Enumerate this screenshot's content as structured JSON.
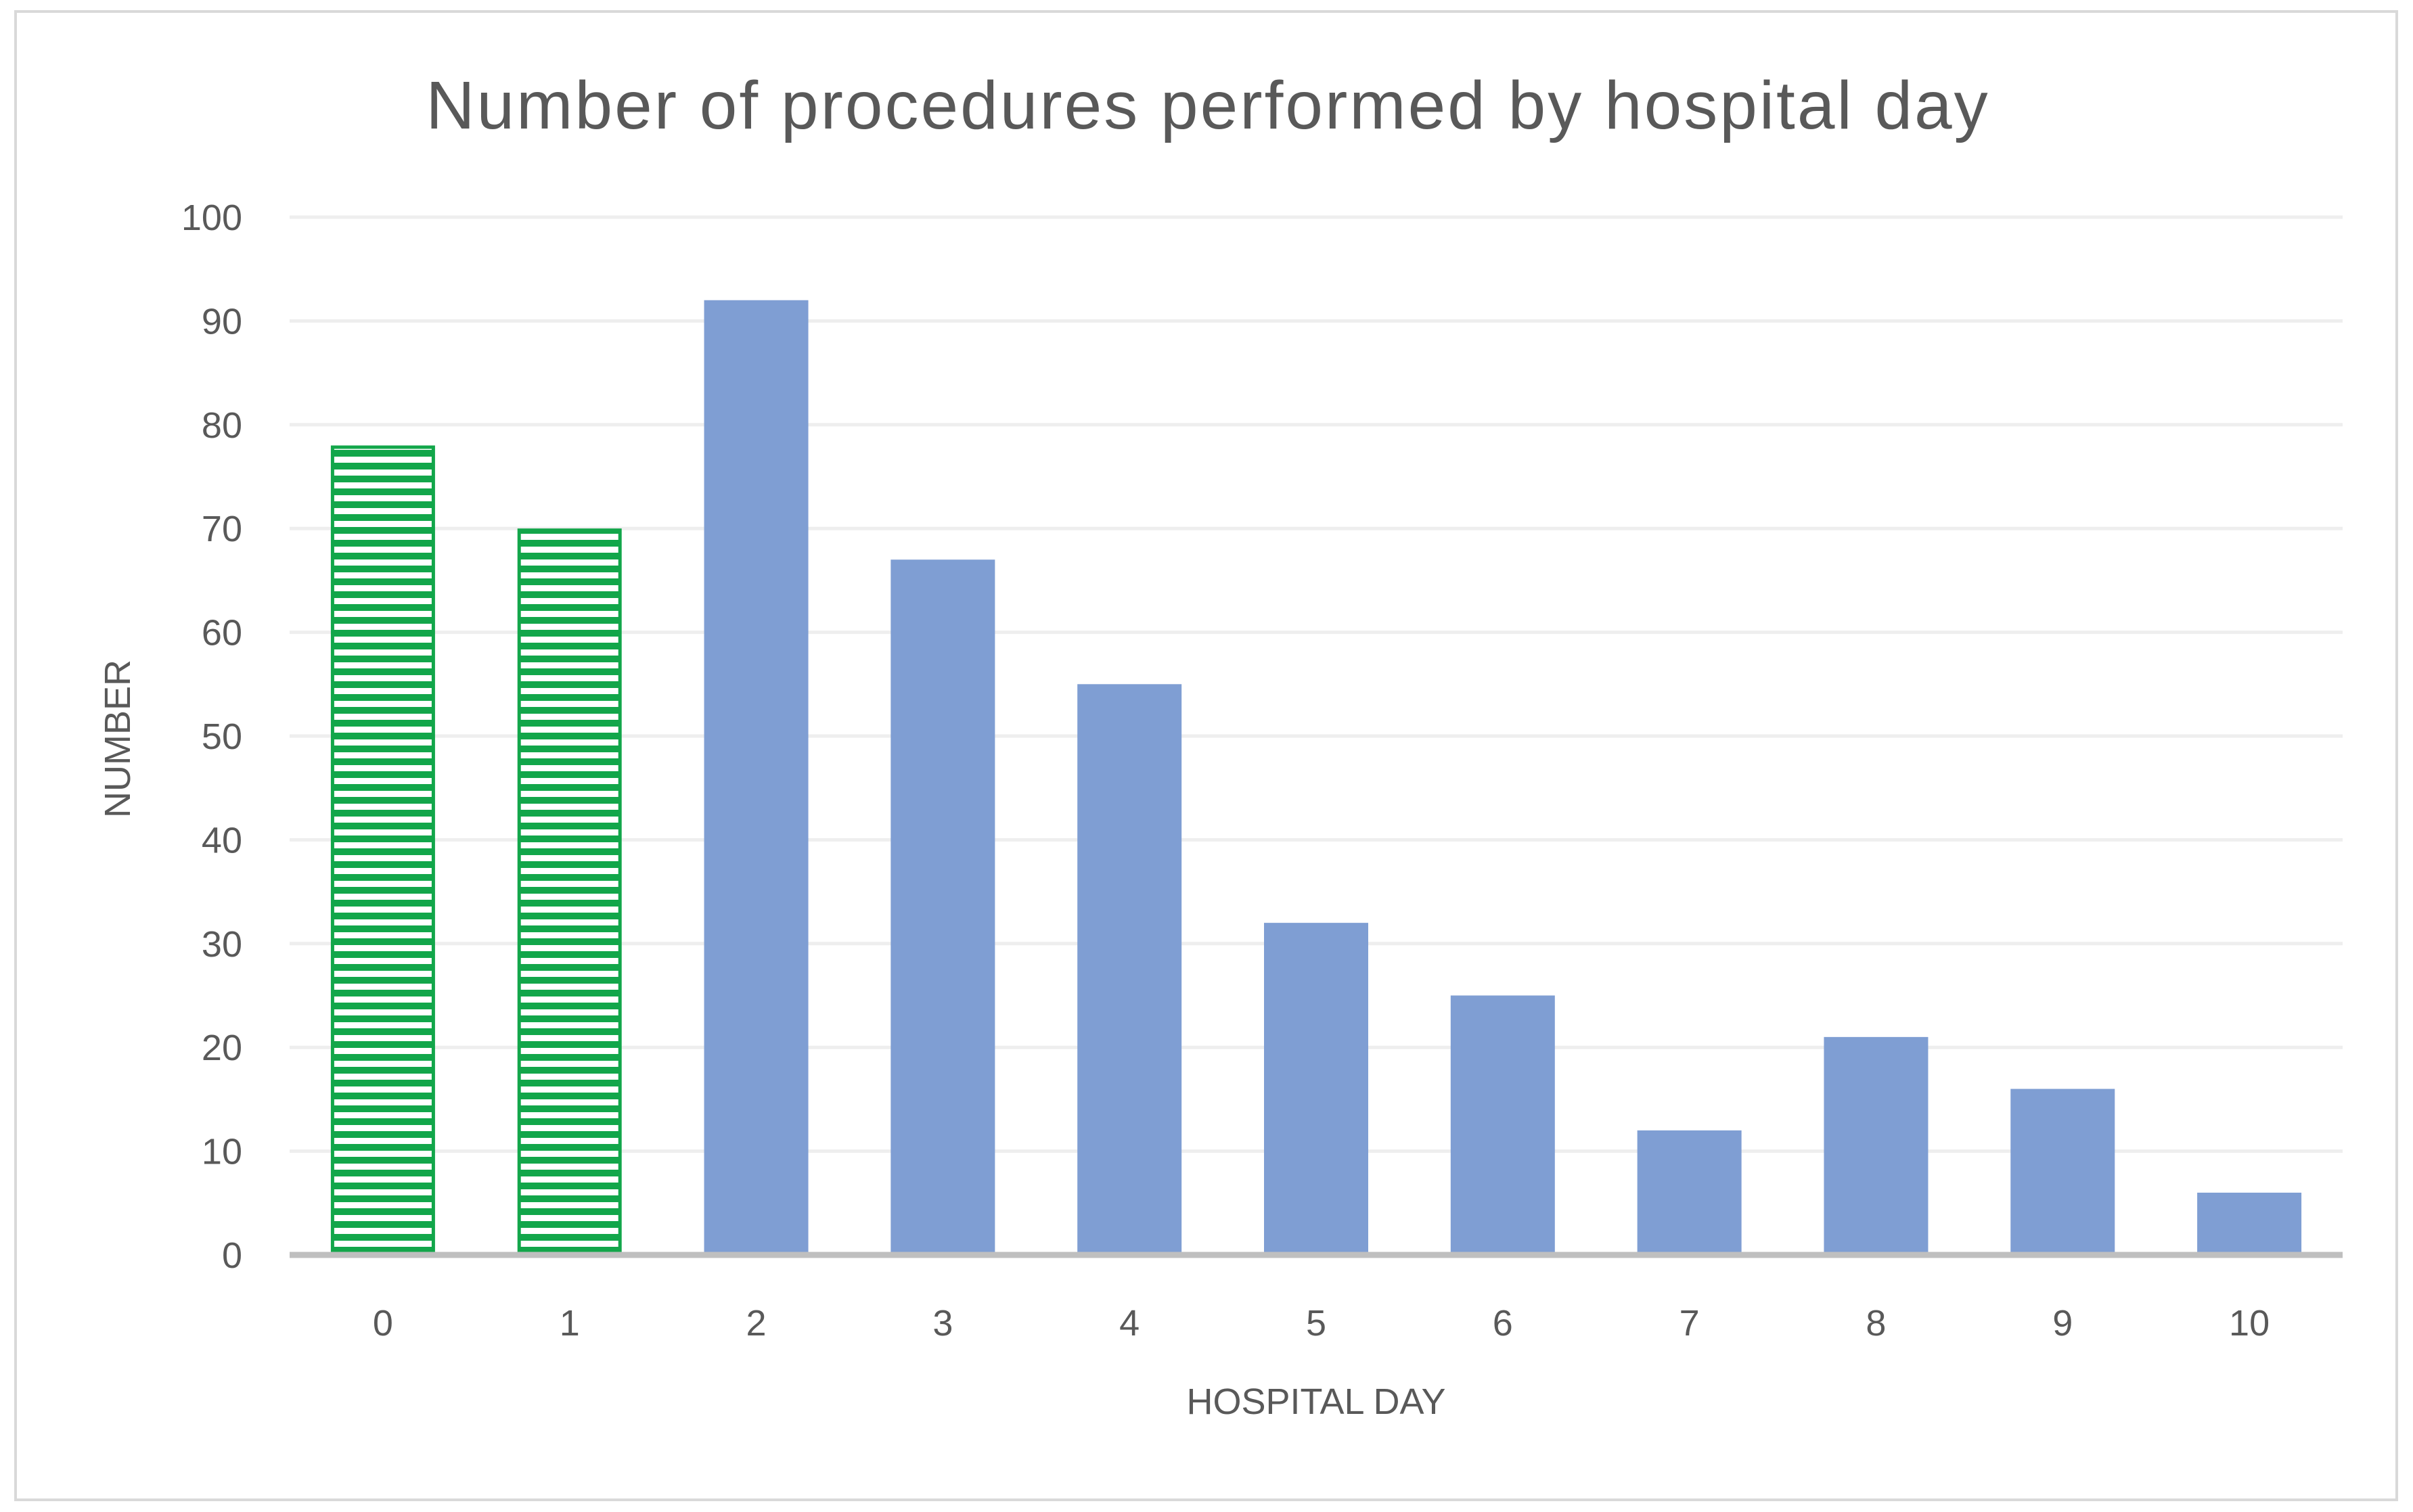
{
  "chart_data": {
    "type": "bar",
    "title": "Number of procedures performed by hospital day",
    "xlabel": "HOSPITAL DAY",
    "ylabel": "NUMBER",
    "categories": [
      "0",
      "1",
      "2",
      "3",
      "4",
      "5",
      "6",
      "7",
      "8",
      "9",
      "10"
    ],
    "values": [
      78,
      70,
      92,
      67,
      55,
      32,
      25,
      12,
      21,
      16,
      6
    ],
    "bar_styles": [
      "hatched",
      "hatched",
      "solid",
      "solid",
      "solid",
      "solid",
      "solid",
      "solid",
      "solid",
      "solid",
      "solid"
    ],
    "ylim": [
      0,
      100
    ],
    "yticks": [
      0,
      10,
      20,
      30,
      40,
      50,
      60,
      70,
      80,
      90,
      100
    ],
    "grid": true,
    "legend": "none"
  },
  "colors": {
    "solid_bar": "#7f9ed3",
    "hatched_bar": "#12a64a",
    "gridline": "#eeeeee",
    "baseline": "#bfbfbf",
    "text": "#595959",
    "frame": "#d9d9d9"
  }
}
